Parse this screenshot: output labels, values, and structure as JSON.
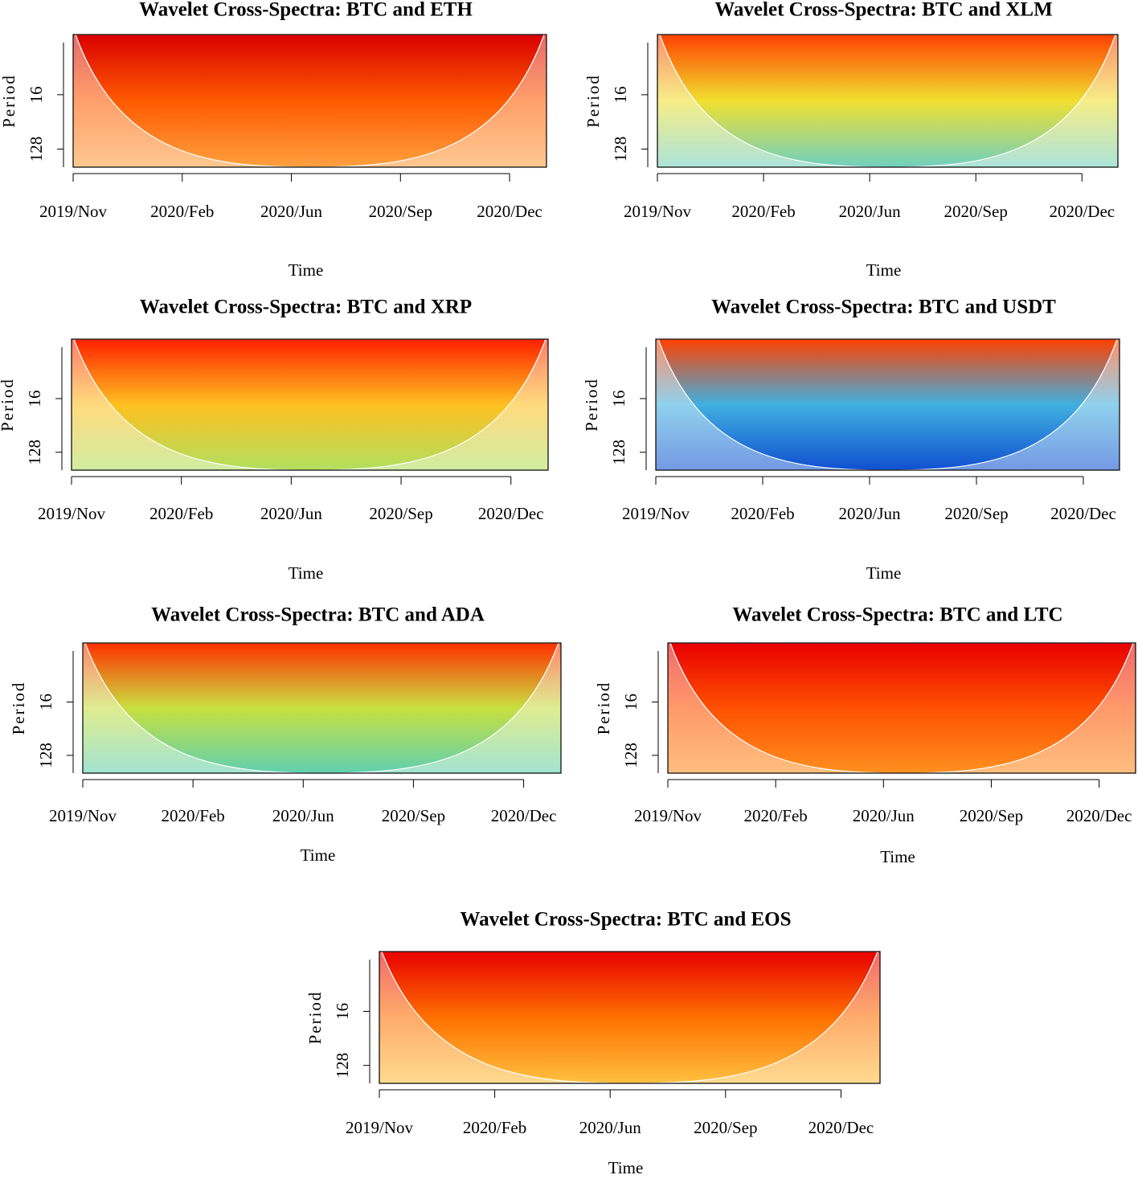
{
  "chart_data": [
    {
      "type": "heatmap",
      "title": "Wavelet Cross-Spectra: BTC and ETH",
      "xlabel": "Time",
      "ylabel": "Period",
      "categories": [
        "2019/Nov",
        "2020/Feb",
        "2020/Jun",
        "2020/Sep",
        "2020/Dec"
      ],
      "ylim": [
        1.6,
        256
      ],
      "yticks": [
        16,
        128
      ],
      "log_scale": true,
      "colors": [
        "#d80000",
        "#ff5a00",
        "#ffa040"
      ]
    },
    {
      "type": "heatmap",
      "title": "Wavelet Cross-Spectra: BTC and XLM",
      "xlabel": "Time",
      "ylabel": "Period",
      "categories": [
        "2019/Nov",
        "2020/Feb",
        "2020/Jun",
        "2020/Sep",
        "2020/Dec"
      ],
      "ylim": [
        1.6,
        256
      ],
      "yticks": [
        16,
        128
      ],
      "log_scale": true,
      "colors": [
        "#ff4000",
        "#f0e030",
        "#70d0c0"
      ]
    },
    {
      "type": "heatmap",
      "title": "Wavelet Cross-Spectra: BTC and XRP",
      "xlabel": "Time",
      "ylabel": "Period",
      "categories": [
        "2019/Nov",
        "2020/Feb",
        "2020/Jun",
        "2020/Sep",
        "2020/Dec"
      ],
      "ylim": [
        1.6,
        256
      ],
      "yticks": [
        16,
        128
      ],
      "log_scale": true,
      "colors": [
        "#ff2000",
        "#ffc020",
        "#b0e060"
      ]
    },
    {
      "type": "heatmap",
      "title": "Wavelet Cross-Spectra: BTC and USDT",
      "xlabel": "Time",
      "ylabel": "Period",
      "categories": [
        "2019/Nov",
        "2020/Feb",
        "2020/Jun",
        "2020/Sep",
        "2020/Dec"
      ],
      "ylim": [
        1.6,
        256
      ],
      "yticks": [
        16,
        128
      ],
      "log_scale": true,
      "colors": [
        "#ff4000",
        "#40b0e0",
        "#1050d0"
      ]
    },
    {
      "type": "heatmap",
      "title": "Wavelet Cross-Spectra: BTC and ADA",
      "xlabel": "Time",
      "ylabel": "Period",
      "categories": [
        "2019/Nov",
        "2020/Feb",
        "2020/Jun",
        "2020/Sep",
        "2020/Dec"
      ],
      "ylim": [
        1.6,
        256
      ],
      "yticks": [
        16,
        128
      ],
      "log_scale": true,
      "colors": [
        "#ff3000",
        "#c8e040",
        "#60d0b0"
      ]
    },
    {
      "type": "heatmap",
      "title": "Wavelet Cross-Spectra: BTC and LTC",
      "xlabel": "Time",
      "ylabel": "Period",
      "categories": [
        "2019/Nov",
        "2020/Feb",
        "2020/Jun",
        "2020/Sep",
        "2020/Dec"
      ],
      "ylim": [
        1.6,
        256
      ],
      "yticks": [
        16,
        128
      ],
      "log_scale": true,
      "colors": [
        "#e80000",
        "#ff5000",
        "#ff9020"
      ]
    },
    {
      "type": "heatmap",
      "title": "Wavelet Cross-Spectra: BTC and EOS",
      "xlabel": "Time",
      "ylabel": "Period",
      "categories": [
        "2019/Nov",
        "2020/Feb",
        "2020/Jun",
        "2020/Sep",
        "2020/Dec"
      ],
      "ylim": [
        1.6,
        256
      ],
      "yticks": [
        16,
        128
      ],
      "log_scale": true,
      "colors": [
        "#e80000",
        "#ff7000",
        "#ffc040"
      ]
    }
  ]
}
